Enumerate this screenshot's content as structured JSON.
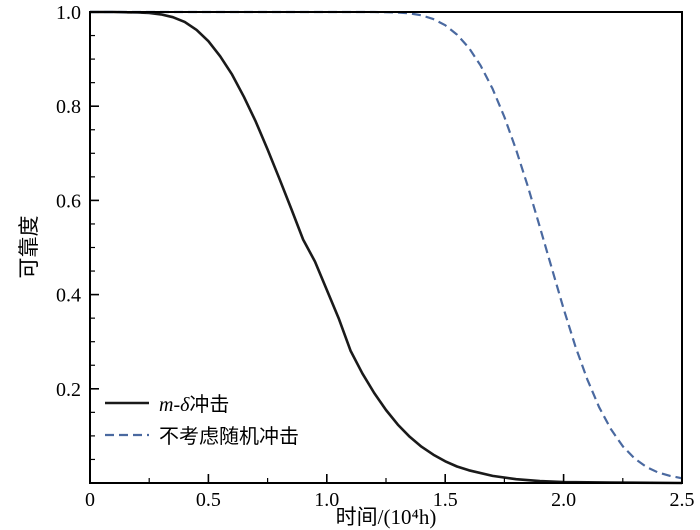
{
  "chart_data": {
    "type": "line",
    "title": "",
    "xlabel": "时间/(10⁴h)",
    "ylabel": "可靠度",
    "xlim": [
      0,
      2.5
    ],
    "ylim": [
      0,
      1.0
    ],
    "grid": false,
    "legend_position": "lower-left",
    "x_major_ticks": [
      0,
      0.5,
      1.0,
      1.5,
      2.0,
      2.5
    ],
    "x_tick_labels": [
      "0",
      "0.5",
      "1.0",
      "1.5",
      "2.0",
      "2.5"
    ],
    "x_minor_ticks": [
      0.25,
      0.75,
      1.25,
      1.75,
      2.25
    ],
    "y_major_ticks": [
      0.2,
      0.4,
      0.6,
      0.8,
      1.0
    ],
    "y_tick_labels": [
      "0.2",
      "0.4",
      "0.6",
      "0.8",
      "1.0"
    ],
    "y_minor_ticks": [
      0.05,
      0.1,
      0.15,
      0.25,
      0.3,
      0.35,
      0.45,
      0.5,
      0.55,
      0.65,
      0.7,
      0.75,
      0.85,
      0.9,
      0.95
    ],
    "axis_color": "#000000",
    "series": [
      {
        "name": "m-δ冲击",
        "color": "#1a1a1a",
        "style": "solid",
        "width": 2.6,
        "dash": "",
        "points": [
          [
            0,
            1.0
          ],
          [
            0.1,
            1.0
          ],
          [
            0.2,
            0.999
          ],
          [
            0.25,
            0.998
          ],
          [
            0.3,
            0.995
          ],
          [
            0.35,
            0.989
          ],
          [
            0.4,
            0.979
          ],
          [
            0.45,
            0.962
          ],
          [
            0.5,
            0.938
          ],
          [
            0.55,
            0.906
          ],
          [
            0.6,
            0.867
          ],
          [
            0.65,
            0.82
          ],
          [
            0.7,
            0.767
          ],
          [
            0.75,
            0.708
          ],
          [
            0.8,
            0.646
          ],
          [
            0.85,
            0.582
          ],
          [
            0.9,
            0.517
          ],
          [
            0.95,
            0.47
          ],
          [
            1.0,
            0.41
          ],
          [
            1.05,
            0.35
          ],
          [
            1.1,
            0.281
          ],
          [
            1.15,
            0.233
          ],
          [
            1.2,
            0.191
          ],
          [
            1.25,
            0.155
          ],
          [
            1.3,
            0.124
          ],
          [
            1.35,
            0.098
          ],
          [
            1.4,
            0.077
          ],
          [
            1.45,
            0.06
          ],
          [
            1.5,
            0.046
          ],
          [
            1.55,
            0.035
          ],
          [
            1.6,
            0.027
          ],
          [
            1.7,
            0.015
          ],
          [
            1.8,
            0.008
          ],
          [
            1.9,
            0.004
          ],
          [
            2.0,
            0.002
          ],
          [
            2.2,
            0.001
          ],
          [
            2.5,
            0.0
          ]
        ]
      },
      {
        "name": "不考虑随机冲击",
        "color": "#4a69a0",
        "style": "dashed",
        "width": 2.2,
        "dash": "9 5",
        "points": [
          [
            0,
            1.0
          ],
          [
            0.5,
            1.0
          ],
          [
            1.0,
            1.0
          ],
          [
            1.2,
            1.0
          ],
          [
            1.3,
            0.999
          ],
          [
            1.35,
            0.997
          ],
          [
            1.4,
            0.993
          ],
          [
            1.45,
            0.985
          ],
          [
            1.5,
            0.972
          ],
          [
            1.55,
            0.952
          ],
          [
            1.6,
            0.924
          ],
          [
            1.65,
            0.886
          ],
          [
            1.7,
            0.837
          ],
          [
            1.75,
            0.777
          ],
          [
            1.8,
            0.707
          ],
          [
            1.85,
            0.628
          ],
          [
            1.9,
            0.543
          ],
          [
            1.95,
            0.456
          ],
          [
            2.0,
            0.37
          ],
          [
            2.05,
            0.29
          ],
          [
            2.1,
            0.22
          ],
          [
            2.15,
            0.161
          ],
          [
            2.2,
            0.114
          ],
          [
            2.25,
            0.078
          ],
          [
            2.3,
            0.052
          ],
          [
            2.35,
            0.034
          ],
          [
            2.4,
            0.022
          ],
          [
            2.45,
            0.015
          ],
          [
            2.5,
            0.01
          ]
        ]
      }
    ]
  },
  "legend": {
    "entries": [
      {
        "italic": "m-δ",
        "rest": "冲击"
      },
      {
        "italic": "",
        "rest": "不考虑随机冲击"
      }
    ]
  }
}
